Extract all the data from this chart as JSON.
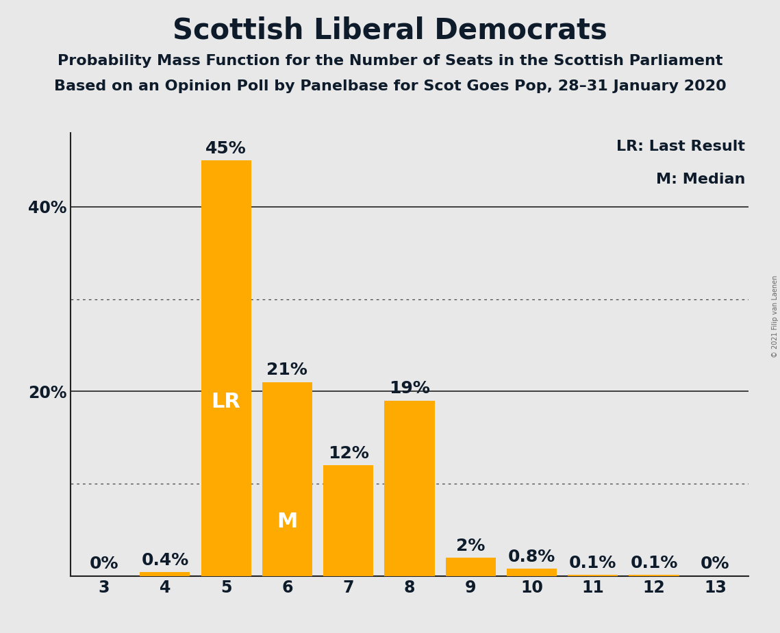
{
  "title": "Scottish Liberal Democrats",
  "subtitle1": "Probability Mass Function for the Number of Seats in the Scottish Parliament",
  "subtitle2": "Based on an Opinion Poll by Panelbase for Scot Goes Pop, 28–31 January 2020",
  "copyright": "© 2021 Filip van Laenen",
  "legend_lr": "LR: Last Result",
  "legend_m": "M: Median",
  "categories": [
    3,
    4,
    5,
    6,
    7,
    8,
    9,
    10,
    11,
    12,
    13
  ],
  "values": [
    0.0,
    0.4,
    45.0,
    21.0,
    12.0,
    19.0,
    2.0,
    0.8,
    0.1,
    0.1,
    0.0
  ],
  "bar_color": "#FFAA00",
  "bar_labels": [
    "0%",
    "0.4%",
    "45%",
    "21%",
    "12%",
    "19%",
    "2%",
    "0.8%",
    "0.1%",
    "0.1%",
    "0%"
  ],
  "lr_bar_index": 2,
  "median_bar_index": 3,
  "lr_label": "LR",
  "median_label": "M",
  "background_color": "#E8E8E8",
  "ylim": [
    0,
    48
  ],
  "solid_gridlines": [
    20,
    40
  ],
  "dotted_gridlines": [
    10,
    30
  ],
  "title_fontsize": 30,
  "subtitle_fontsize": 16,
  "legend_fontsize": 16,
  "tick_fontsize": 17,
  "annotation_fontsize": 18,
  "inbar_fontsize": 22,
  "text_color": "#0d1b2a"
}
